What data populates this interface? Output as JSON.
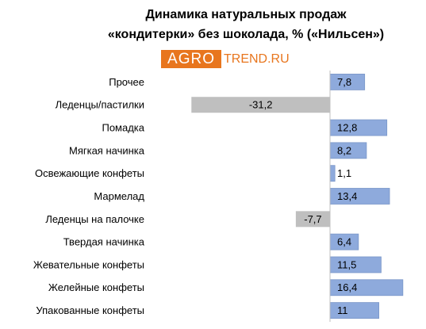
{
  "chart_data": {
    "type": "hbar",
    "title": [
      "Динамика натуральных продаж",
      "«кондитерки» без шоколада, % («Нильсен»)"
    ],
    "annotations": [
      "AGRO",
      "TREND.RU"
    ],
    "categories": [
      "Прочее",
      "Леденцы/пастилки",
      "Помадка",
      "Мягкая начинка",
      "Освежающие конфеты",
      "Мармелад",
      "Леденцы на палочке",
      "Твердая начинка",
      "Жевательные конфеты",
      "Желейные конфеты",
      "Упакованные конфеты"
    ],
    "values": [
      7.8,
      -31.2,
      12.8,
      8.2,
      1.1,
      13.4,
      -7.7,
      6.4,
      11.5,
      16.4,
      11
    ],
    "value_labels": [
      "7,8",
      "-31,2",
      "12,8",
      "8,2",
      "1,1",
      "13,4",
      "-7,7",
      "6,4",
      "11,5",
      "16,4",
      "11"
    ],
    "color": "#8eaadc",
    "negative_color": "#bfbfbf",
    "xlim": [
      -32,
      18
    ]
  }
}
